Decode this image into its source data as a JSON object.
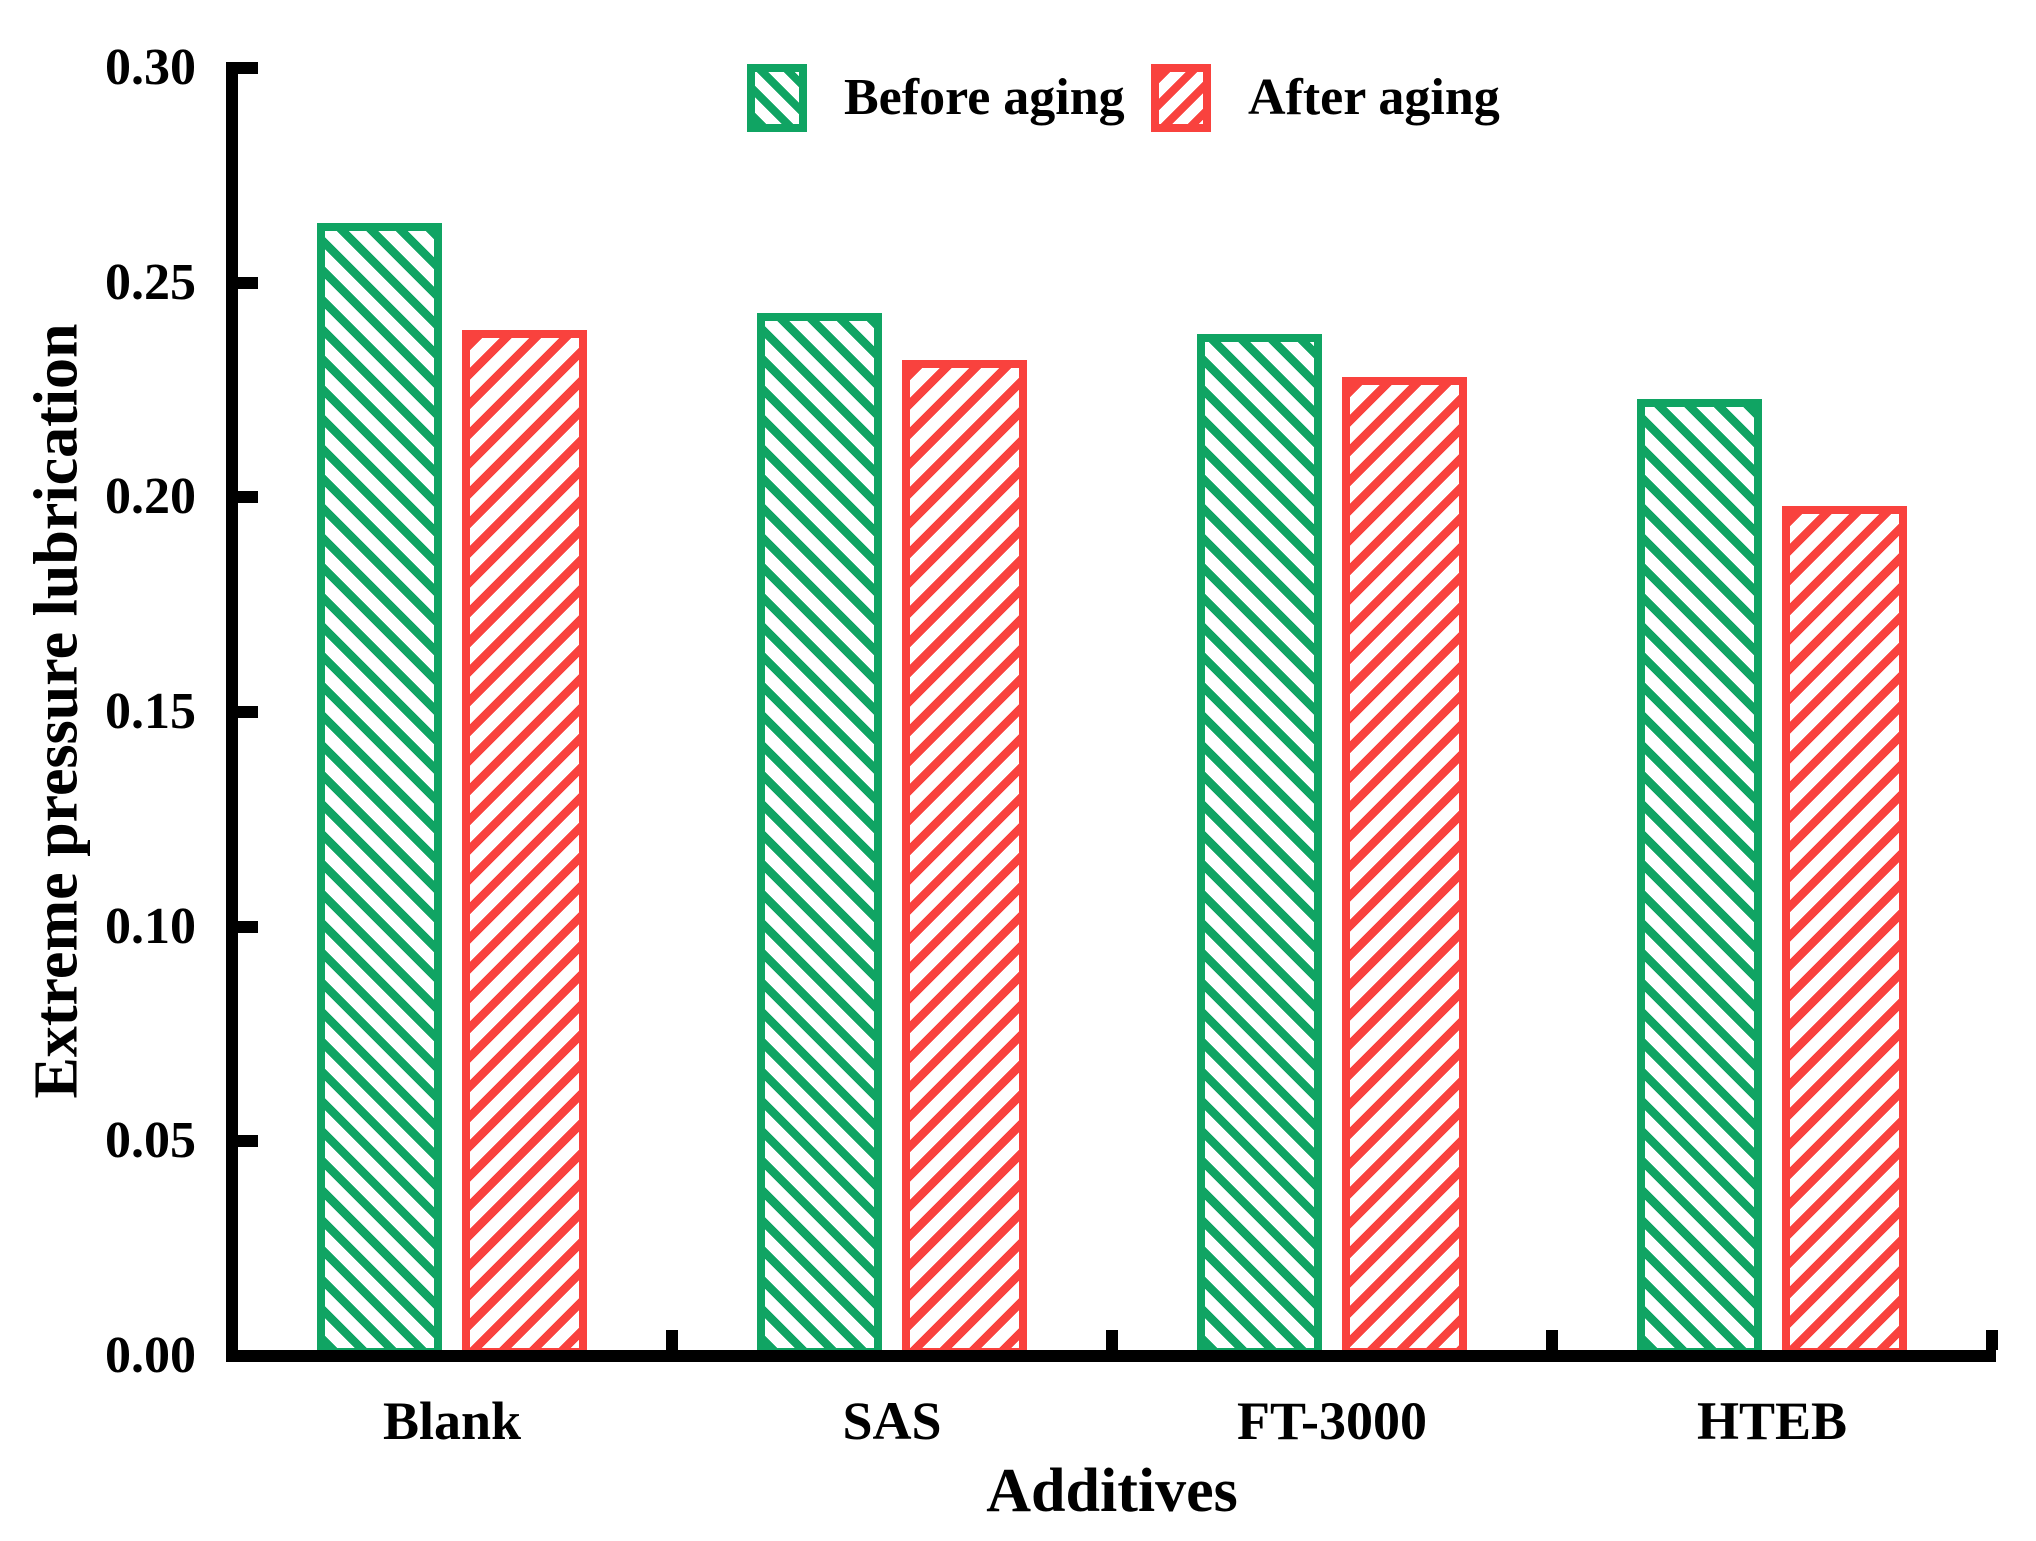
{
  "chart_data": {
    "type": "bar",
    "title": "",
    "xlabel": "Additives",
    "ylabel": "Extreme pressure lubrication",
    "categories": [
      "Blank",
      "SAS",
      "FT-3000",
      "HTEB"
    ],
    "series": [
      {
        "name": "Before aging",
        "color": "#10a463",
        "hatch": "\\",
        "values": [
          0.264,
          0.243,
          0.238,
          0.223
        ]
      },
      {
        "name": "After aging",
        "color": "#f9423e",
        "hatch": "/",
        "values": [
          0.239,
          0.232,
          0.228,
          0.198
        ]
      }
    ],
    "ylim": [
      0.0,
      0.3
    ],
    "ytick_step": 0.05,
    "ytick_labels": [
      "0.00",
      "0.05",
      "0.10",
      "0.15",
      "0.20",
      "0.25",
      "0.30"
    ],
    "legend_position": "top-center",
    "grid": false,
    "axis_color": "#000000",
    "background_color": "#ffffff",
    "text_color": "#000000"
  }
}
